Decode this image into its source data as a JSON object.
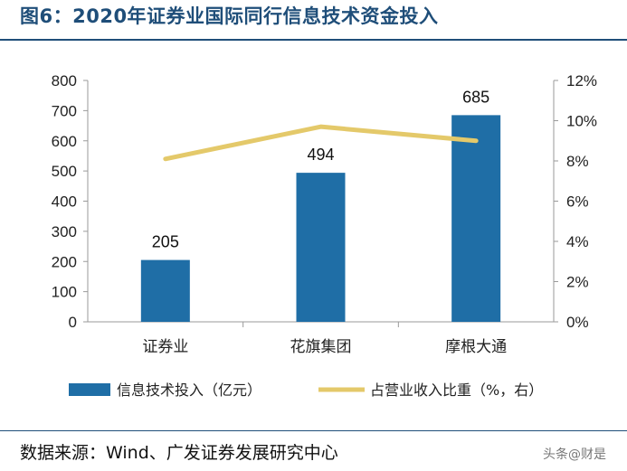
{
  "header": {
    "title": "图6：2020年证券业国际同行信息技术资金投入"
  },
  "footer": {
    "source": "数据来源：Wind、广发证券发展研究中心",
    "watermark": "头条@财是"
  },
  "colors": {
    "bar": "#1f6ea6",
    "line": "#e4c96a",
    "accent": "#1f4e79"
  },
  "chart_data": {
    "type": "bar",
    "categories": [
      "证券业",
      "花旗集团",
      "摩根大通"
    ],
    "series": [
      {
        "name": "信息技术投入（亿元）",
        "type": "bar",
        "axis": "left",
        "values": [
          205,
          494,
          685
        ]
      },
      {
        "name": "占营业收入比重（%，右）",
        "type": "line",
        "axis": "right",
        "values": [
          8.1,
          9.7,
          9.0
        ]
      }
    ],
    "y_left": {
      "ylim": [
        0,
        800
      ],
      "ticks": [
        "0",
        "100",
        "200",
        "300",
        "400",
        "500",
        "600",
        "700",
        "800"
      ]
    },
    "y_right": {
      "ylim": [
        0,
        12
      ],
      "ticks": [
        "0%",
        "2%",
        "4%",
        "6%",
        "8%",
        "10%",
        "12%"
      ]
    },
    "data_labels": [
      "205",
      "494",
      "685"
    ],
    "grid": false,
    "legend_position": "bottom"
  }
}
